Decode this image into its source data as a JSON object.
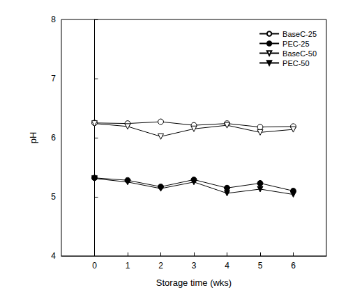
{
  "chart_data": {
    "type": "line",
    "x_label": "Storage time (wks)",
    "y_label": "pH",
    "x": [
      0,
      1,
      2,
      3,
      4,
      5,
      6
    ],
    "xlim": [
      -1,
      7
    ],
    "xticks": [
      0,
      1,
      2,
      3,
      4,
      5,
      6
    ],
    "ylim": [
      4,
      8
    ],
    "yticks": [
      4,
      5,
      6,
      7,
      8
    ],
    "grid": false,
    "legend": "upper right",
    "series": [
      {
        "name": "BaseC-25",
        "color": "#000000",
        "marker": "open_circle",
        "line_style": "solid",
        "values": [
          6.25,
          6.24,
          6.27,
          6.21,
          6.24,
          6.18,
          6.19
        ]
      },
      {
        "name": "PEC-25",
        "color": "#000000",
        "marker": "filled_circle",
        "line_style": "solid",
        "values": [
          5.32,
          5.28,
          5.17,
          5.29,
          5.15,
          5.23,
          5.1
        ]
      },
      {
        "name": "BaseC-50",
        "color": "#000000",
        "marker": "open_triangle_down",
        "line_style": "solid",
        "values": [
          6.24,
          6.19,
          6.02,
          6.15,
          6.21,
          6.09,
          6.14
        ]
      },
      {
        "name": "PEC-50",
        "color": "#000000",
        "marker": "filled_triangle_down",
        "line_style": "solid",
        "values": [
          5.31,
          5.25,
          5.14,
          5.25,
          5.06,
          5.13,
          5.04
        ]
      }
    ]
  }
}
